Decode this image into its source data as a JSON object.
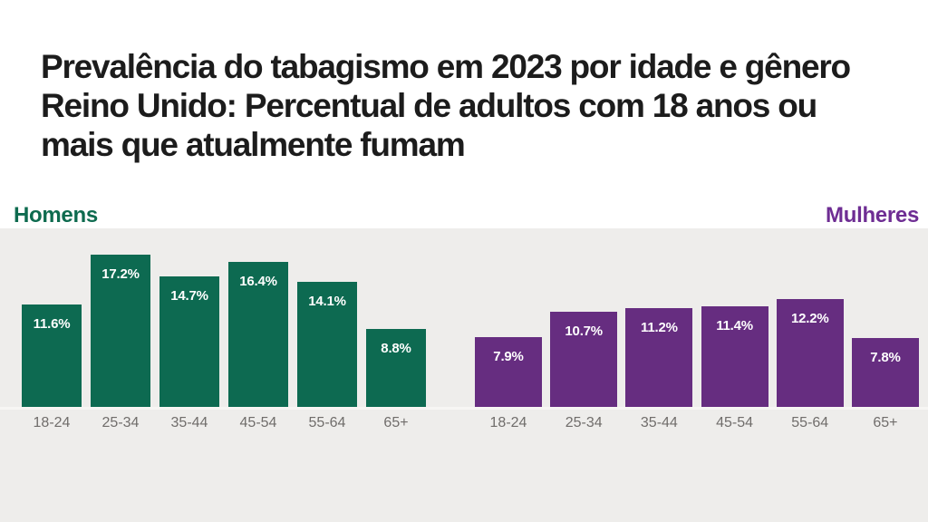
{
  "title": {
    "lines": [
      "Prevalência do tabagismo em 2023 por idade e gênero",
      "Reino Unido: Percentual de adultos com 18 anos ou",
      "mais que atualmente fumam"
    ],
    "color": "#1c1c1c"
  },
  "panel": {
    "background": "#eeedeb",
    "baseline_color": "#f7f6f4",
    "axis_text_color": "#706d6b"
  },
  "chart_data": {
    "type": "bar",
    "title": "Prevalência do tabagismo em 2023 por idade e gênero",
    "subtitle": "Reino Unido: Percentual de adultos com 18 anos ou mais que atualmente fumam",
    "categories": [
      "18-24",
      "25-34",
      "35-44",
      "45-54",
      "55-64",
      "65+"
    ],
    "series": [
      {
        "name": "Homens",
        "color": "#0d6a51",
        "name_color": "#0e6b4f",
        "values": [
          11.6,
          17.2,
          14.7,
          16.4,
          14.1,
          8.8
        ],
        "value_labels": [
          "11.6%",
          "17.2%",
          "14.7%",
          "16.4%",
          "14.1%",
          "8.8%"
        ]
      },
      {
        "name": "Mulheres",
        "color": "#662d80",
        "name_color": "#6e2d93",
        "values": [
          7.9,
          10.7,
          11.2,
          11.4,
          12.2,
          7.8
        ],
        "value_labels": [
          "7.9%",
          "10.7%",
          "11.2%",
          "11.4%",
          "12.2%",
          "7.8%"
        ]
      }
    ],
    "xlabel": "",
    "ylabel": "",
    "ylim": [
      0,
      18
    ],
    "grid": false,
    "legend_position": "series labels above chart, left (Homens) and right (Mulheres)",
    "value_labels_shown": true,
    "value_label_position": "inside bar, near top, white bold"
  }
}
